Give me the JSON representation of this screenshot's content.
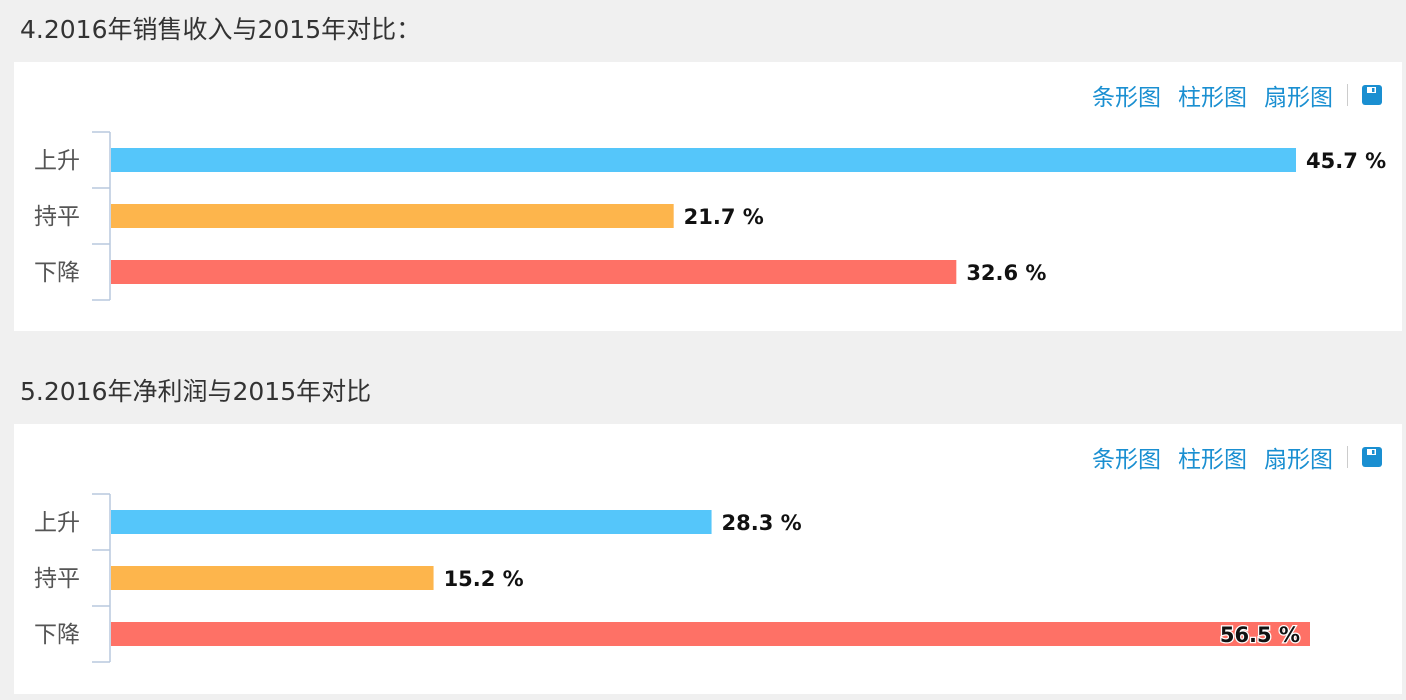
{
  "toolbar": {
    "bar_label": "条形图",
    "column_label": "柱形图",
    "pie_label": "扇形图",
    "save_icon": "save-icon"
  },
  "colors": {
    "accent": "#1a8fd1",
    "rise": "#55c6fa",
    "flat": "#fdb54c",
    "fall": "#fe7166"
  },
  "charts": [
    {
      "title": "4.2016年销售收入与2015年对比："
    },
    {
      "title": "5.2016年净利润与2015年对比"
    }
  ],
  "chart_data": [
    {
      "type": "bar",
      "orientation": "horizontal",
      "categories": [
        "上升",
        "持平",
        "下降"
      ],
      "values": [
        45.7,
        21.7,
        32.6
      ],
      "labels": [
        "45.7 %",
        "21.7 %",
        "32.6 %"
      ],
      "unit": "%",
      "colors": [
        "#55c6fa",
        "#fdb54c",
        "#fe7166"
      ],
      "xlim": [
        0,
        45.7
      ],
      "grid": false
    },
    {
      "type": "bar",
      "orientation": "horizontal",
      "categories": [
        "上升",
        "持平",
        "下降"
      ],
      "values": [
        28.3,
        15.2,
        56.5
      ],
      "labels": [
        "28.3 %",
        "15.2 %",
        "56.5 %"
      ],
      "unit": "%",
      "colors": [
        "#55c6fa",
        "#fdb54c",
        "#fe7166"
      ],
      "xlim": [
        0,
        56.5
      ],
      "grid": false
    }
  ]
}
